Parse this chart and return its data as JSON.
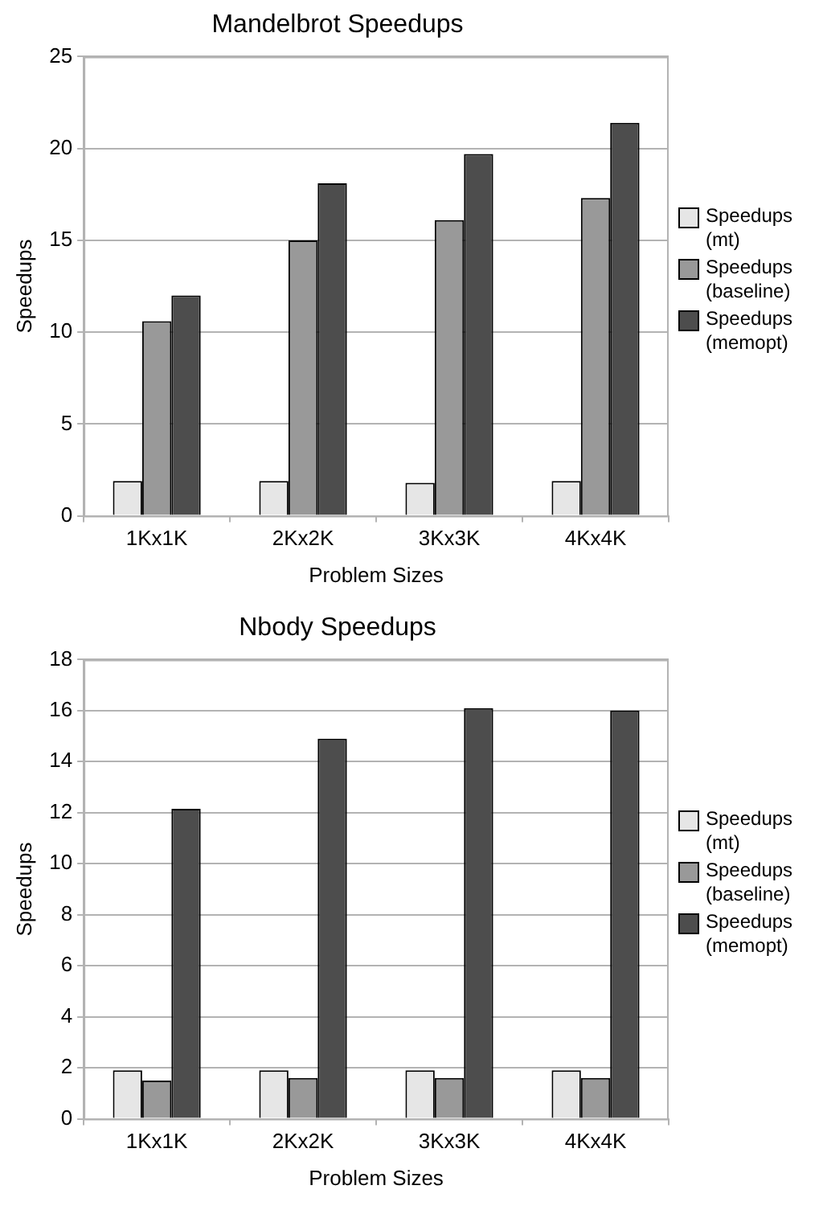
{
  "chart_data": [
    {
      "type": "bar",
      "title": "Mandelbrot Speedups",
      "xlabel": "Problem Sizes",
      "ylabel": "Speedups",
      "categories": [
        "1Kx1K",
        "2Kx2K",
        "3Kx3K",
        "4Kx4K"
      ],
      "series": [
        {
          "name": "Speedups (mt)",
          "color": "#e6e6e6",
          "values": [
            1.9,
            1.9,
            1.8,
            1.9
          ]
        },
        {
          "name": "Speedups (baseline)",
          "color": "#999999",
          "values": [
            10.6,
            15.0,
            16.1,
            17.3
          ]
        },
        {
          "name": "Speedups (memopt)",
          "color": "#4d4d4d",
          "values": [
            12.0,
            18.1,
            19.7,
            21.4
          ]
        }
      ],
      "ylim": [
        0,
        25
      ],
      "yticks": [
        0,
        5,
        10,
        15,
        20,
        25
      ],
      "grid": "y",
      "legend": "right"
    },
    {
      "type": "bar",
      "title": "Nbody Speedups",
      "xlabel": "Problem Sizes",
      "ylabel": "Speedups",
      "categories": [
        "1Kx1K",
        "2Kx2K",
        "3Kx3K",
        "4Kx4K"
      ],
      "series": [
        {
          "name": "Speedups (mt)",
          "color": "#e6e6e6",
          "values": [
            1.9,
            1.9,
            1.9,
            1.9
          ]
        },
        {
          "name": "Speedups (baseline)",
          "color": "#999999",
          "values": [
            1.5,
            1.6,
            1.6,
            1.6
          ]
        },
        {
          "name": "Speedups (memopt)",
          "color": "#4d4d4d",
          "values": [
            12.15,
            14.9,
            16.1,
            16.0
          ]
        }
      ],
      "ylim": [
        0,
        18
      ],
      "yticks": [
        0,
        2,
        4,
        6,
        8,
        10,
        12,
        14,
        16,
        18
      ],
      "grid": "y",
      "legend": "right"
    }
  ]
}
